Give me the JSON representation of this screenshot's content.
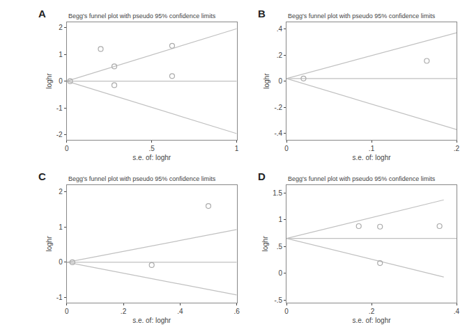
{
  "chart_data": [
    {
      "type": "scatter",
      "title": "Begg's funnel plot with pseudo 95% confidence limits",
      "xlabel": "s.e. of: loghr",
      "ylabel": "loghr",
      "annotations": [
        "A"
      ],
      "xlim": [
        0,
        1.0
      ],
      "ylim": [
        -2.2,
        2.2
      ],
      "xticks": [
        0,
        {
          "value": 0.5,
          "label": ".5"
        },
        1
      ],
      "yticks": [
        -2,
        -1,
        0,
        1,
        2
      ],
      "grid": false,
      "series": [
        {
          "type": "line",
          "color": "#c0c0c0",
          "x": [
            0.0,
            1.0
          ],
          "values": [
            0.0,
            1.96
          ]
        },
        {
          "type": "line",
          "color": "#c0c0c0",
          "x": [
            0.0,
            1.0
          ],
          "values": [
            0.0,
            -1.96
          ]
        },
        {
          "type": "line",
          "color": "#c0c0c0",
          "x": [
            0.0,
            1.0
          ],
          "values": [
            0.0,
            0.0
          ]
        },
        {
          "type": "scatter",
          "marker": "open circle",
          "color": "#aaaaaa",
          "x": [
            0.02,
            0.2,
            0.28,
            0.28,
            0.62,
            0.62
          ],
          "values": [
            0.0,
            1.2,
            0.55,
            -0.15,
            0.19,
            1.32
          ]
        }
      ]
    },
    {
      "type": "scatter",
      "title": "Begg's funnel plot with pseudo 95% confidence limits",
      "xlabel": "s.e. of: loghr",
      "ylabel": "loghr",
      "annotations": [
        "B"
      ],
      "xlim": [
        0,
        0.2
      ],
      "ylim": [
        -0.45,
        0.45
      ],
      "xticks": [
        0,
        {
          "value": 0.1,
          "label": ".1"
        },
        {
          "value": 0.2,
          "label": ".2"
        }
      ],
      "yticks": [
        {
          "value": -0.4,
          "label": "-.4"
        },
        {
          "value": -0.2,
          "label": "-.2"
        },
        0,
        {
          "value": 0.2,
          "label": ".2"
        },
        {
          "value": 0.4,
          "label": ".4"
        }
      ],
      "grid": false,
      "series": [
        {
          "type": "line",
          "color": "#c0c0c0",
          "x": [
            0.0,
            0.2
          ],
          "values": [
            0.02,
            0.37
          ]
        },
        {
          "type": "line",
          "color": "#c0c0c0",
          "x": [
            0.0,
            0.2
          ],
          "values": [
            0.02,
            -0.37
          ]
        },
        {
          "type": "line",
          "color": "#c0c0c0",
          "x": [
            0.0,
            0.2
          ],
          "values": [
            0.02,
            0.02
          ]
        },
        {
          "type": "scatter",
          "marker": "open circle",
          "color": "#aaaaaa",
          "x": [
            0.02,
            0.165
          ],
          "values": [
            0.02,
            0.155
          ]
        }
      ]
    },
    {
      "type": "scatter",
      "title": "Begg's funnel plot with pseudo 95% confidence limits",
      "xlabel": "s.e. of: loghr",
      "ylabel": "loghr",
      "annotations": [
        "C"
      ],
      "xlim": [
        0,
        0.6
      ],
      "ylim": [
        -1.15,
        2.2
      ],
      "xticks": [
        0,
        {
          "value": 0.2,
          "label": ".2"
        },
        {
          "value": 0.4,
          "label": ".4"
        },
        {
          "value": 0.6,
          "label": ".6"
        }
      ],
      "yticks": [
        -1,
        0,
        1,
        2
      ],
      "grid": false,
      "series": [
        {
          "type": "line",
          "color": "#c0c0c0",
          "x": [
            0.0,
            0.6
          ],
          "values": [
            0.0,
            0.93
          ]
        },
        {
          "type": "line",
          "color": "#c0c0c0",
          "x": [
            0.0,
            0.6
          ],
          "values": [
            0.0,
            -0.93
          ]
        },
        {
          "type": "line",
          "color": "#c0c0c0",
          "x": [
            0.0,
            0.6
          ],
          "values": [
            0.0,
            0.0
          ]
        },
        {
          "type": "scatter",
          "marker": "open circle",
          "color": "#aaaaaa",
          "x": [
            0.02,
            0.3,
            0.5
          ],
          "values": [
            0.0,
            -0.08,
            1.6
          ]
        }
      ]
    },
    {
      "type": "scatter",
      "title": "Begg's funnel plot with pseudo 95% confidence limits",
      "xlabel": "s.e. of: loghr",
      "ylabel": "loghr",
      "annotations": [
        "D"
      ],
      "xlim": [
        0,
        0.4
      ],
      "ylim": [
        -0.55,
        1.65
      ],
      "xticks": [
        0,
        {
          "value": 0.2,
          "label": ".2"
        },
        {
          "value": 0.4,
          "label": ".4"
        }
      ],
      "yticks": [
        {
          "value": -0.5,
          "label": "-.5"
        },
        0,
        {
          "value": 0.5,
          "label": ".5"
        },
        1,
        1.5
      ],
      "grid": false,
      "series": [
        {
          "type": "line",
          "color": "#c0c0c0",
          "x": [
            0.0,
            0.37
          ],
          "values": [
            0.65,
            1.37
          ]
        },
        {
          "type": "line",
          "color": "#c0c0c0",
          "x": [
            0.0,
            0.37
          ],
          "values": [
            0.65,
            -0.07
          ]
        },
        {
          "type": "line",
          "color": "#c0c0c0",
          "x": [
            0.0,
            0.4
          ],
          "values": [
            0.65,
            0.65
          ]
        },
        {
          "type": "scatter",
          "marker": "open circle",
          "color": "#aaaaaa",
          "x": [
            0.17,
            0.22,
            0.22,
            0.36
          ],
          "values": [
            0.88,
            0.87,
            0.19,
            0.88
          ]
        }
      ]
    }
  ]
}
